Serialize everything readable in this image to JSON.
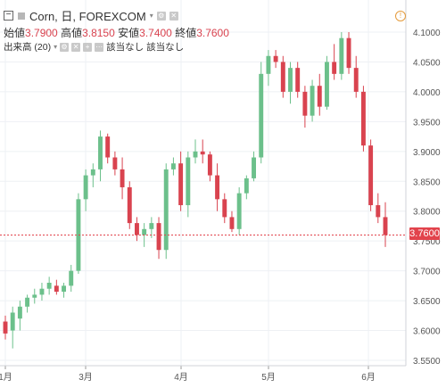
{
  "legend": {
    "symbol": "Corn, 日, FOREXCOM",
    "open_label": "始値",
    "open_value": "3.7900",
    "high_label": "高値",
    "high_value": "3.8150",
    "low_label": "安値",
    "low_value": "3.7400",
    "close_label": "終値",
    "close_value": "3.7600",
    "volume_label": "出来高 (20)",
    "na1": "該当なし",
    "na2": "該当なし"
  },
  "colors": {
    "up": "#6cc08b",
    "down": "#d9434f",
    "grid": "#eef0f4",
    "axis": "#d0d3d9",
    "price_line": "#e2434c"
  },
  "chart_data": {
    "type": "candlestick",
    "title": "Corn, 日, FOREXCOM",
    "xlabel": "",
    "ylabel": "",
    "ylim": [
      3.525,
      4.125
    ],
    "y_ticks": [
      "4.1000",
      "4.0500",
      "4.0000",
      "3.9500",
      "3.9000",
      "3.8500",
      "3.8000",
      "3.7500",
      "3.7000",
      "3.6500",
      "3.6000",
      "3.5500"
    ],
    "x_ticks": [
      "1月",
      "3月",
      "4月",
      "5月",
      "6月"
    ],
    "last_price": "3.7600",
    "series": [
      {
        "name": "up",
        "values": [
          [
            "",
            3.59,
            3.63,
            3.575,
            3.62
          ],
          [
            "",
            3.605,
            3.655,
            3.595,
            3.645
          ],
          [
            "",
            3.64,
            3.675,
            3.63,
            3.665
          ],
          [
            "",
            3.655,
            3.69,
            3.65,
            3.68
          ],
          [
            "",
            3.66,
            3.69,
            3.655,
            3.68
          ],
          [
            "",
            3.65,
            3.68,
            3.645,
            3.675
          ],
          [
            "",
            3.67,
            3.715,
            3.66,
            3.705
          ],
          [
            "",
            3.7,
            3.83,
            3.695,
            3.81
          ],
          [
            "",
            3.81,
            3.87,
            3.8,
            3.86
          ],
          [
            "",
            3.85,
            3.88,
            3.84,
            3.87
          ],
          [
            "",
            3.86,
            3.935,
            3.85,
            3.925
          ],
          [
            "",
            3.83,
            3.89,
            3.83,
            3.88
          ],
          [
            "",
            3.73,
            3.775,
            3.695,
            3.76
          ],
          [
            "",
            3.745,
            3.79,
            3.73,
            3.775
          ],
          [
            "",
            3.81,
            3.89,
            3.76,
            3.88
          ],
          [
            "",
            3.86,
            3.885,
            3.8,
            3.88
          ],
          [
            "",
            3.79,
            3.83,
            3.78,
            3.82
          ],
          [
            "",
            3.78,
            3.86,
            3.77,
            3.85
          ],
          [
            "",
            3.85,
            3.9,
            3.845,
            3.89
          ],
          [
            "",
            3.9,
            4.05,
            3.89,
            4.03
          ],
          [
            "",
            4.02,
            4.07,
            4.01,
            4.06
          ],
          [
            "",
            3.99,
            4.05,
            3.98,
            4.04
          ],
          [
            "",
            3.98,
            4.04,
            3.97,
            4.03
          ],
          [
            "",
            3.96,
            4.02,
            3.95,
            4.01
          ],
          [
            "",
            3.99,
            4.06,
            3.98,
            4.05
          ],
          [
            "",
            4.01,
            4.1,
            4.0,
            4.09
          ],
          [
            "",
            3.87,
            3.9,
            3.86,
            3.89
          ]
        ]
      }
    ]
  }
}
